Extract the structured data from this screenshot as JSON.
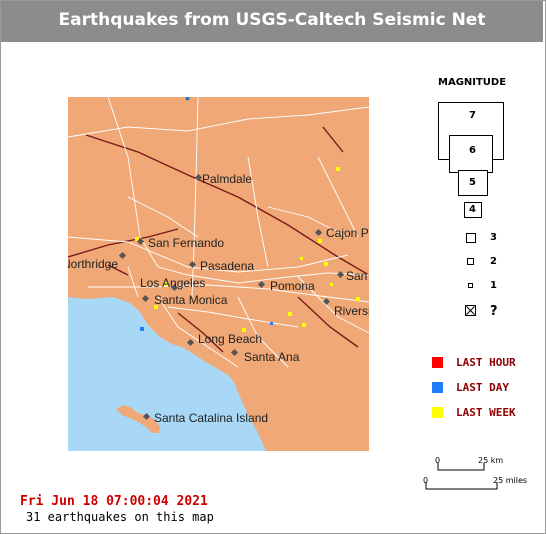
{
  "title": "Earthquakes from USGS-Caltech Seismic Net",
  "colors": {
    "land": "#f0a876",
    "water": "#a8d8f5",
    "fault": "#7a1a1a",
    "road": "#ffffff",
    "city_dot": "#555555",
    "last_hour": "#ff0000",
    "last_day": "#1e7cff",
    "last_week": "#ffff00"
  },
  "places": [
    {
      "name": "Palmdale"
    },
    {
      "name": "Cajon Pass"
    },
    {
      "name": "San Fernando"
    },
    {
      "name": "Northridge"
    },
    {
      "name": "Pasadena"
    },
    {
      "name": "San Bernardino"
    },
    {
      "name": "Los Angeles"
    },
    {
      "name": "Pomona"
    },
    {
      "name": "Santa Monica"
    },
    {
      "name": "Riverside"
    },
    {
      "name": "Long Beach"
    },
    {
      "name": "Santa Ana"
    },
    {
      "name": "Santa Catalina Island"
    }
  ],
  "legend": {
    "magnitude_title": "MAGNITUDE",
    "magnitudes": [
      "7",
      "6",
      "5",
      "4",
      "3",
      "2",
      "1",
      "?"
    ],
    "unknown_icon": "boxed-x-icon",
    "age": [
      {
        "label": "LAST HOUR",
        "color": "#ff0000"
      },
      {
        "label": "LAST DAY",
        "color": "#1e7cff"
      },
      {
        "label": "LAST WEEK",
        "color": "#ffff00"
      }
    ]
  },
  "scale": {
    "km": {
      "zero": "0",
      "value": "25 km"
    },
    "miles": {
      "zero": "0",
      "value": "25 miles"
    }
  },
  "timestamp": "Fri Jun 18 07:00:04 2021",
  "count_text": "31 earthquakes on this map"
}
